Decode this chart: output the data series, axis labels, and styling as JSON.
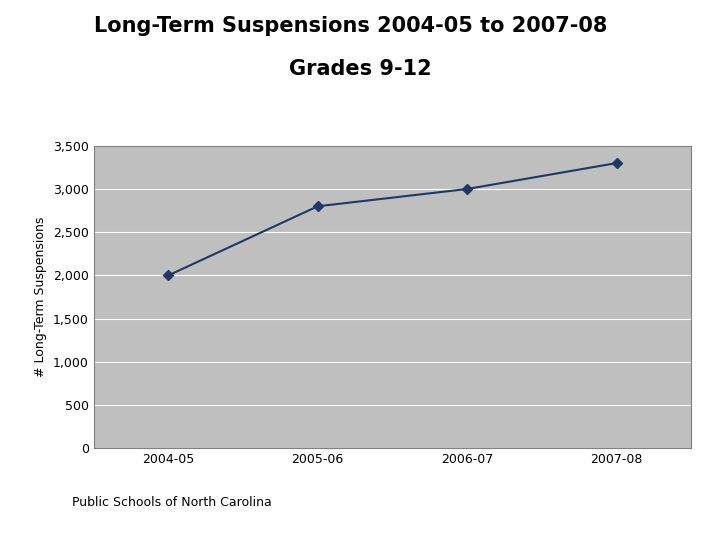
{
  "title_line1": "Long-Term Suspensions 2004-05 to 2007-08",
  "title_line2": "Grades 9-12",
  "x_labels": [
    "2004-05",
    "2005-06",
    "2006-07",
    "2007-08"
  ],
  "y_values": [
    2000,
    2800,
    3000,
    3300
  ],
  "line_color": "#1F3864",
  "marker_color": "#1F3864",
  "plot_bg_color": "#BFBFBF",
  "fig_bg_color": "#FFFFFF",
  "ylabel": "# Long-Term Suspensions",
  "ylim": [
    0,
    3500
  ],
  "yticks": [
    0,
    500,
    1000,
    1500,
    2000,
    2500,
    3000,
    3500
  ],
  "ytick_labels": [
    "0",
    "500",
    "1,000",
    "1,500",
    "2,000",
    "2,500",
    "3,000",
    "3,500"
  ],
  "title_fontsize": 15,
  "ylabel_fontsize": 9,
  "tick_fontsize": 9,
  "grid_color": "#FFFFFF",
  "border_color": "#808080",
  "footer_text": "Public Schools of North Carolina",
  "footer_line_color": "#C9A84C",
  "footer_fontsize": 9
}
